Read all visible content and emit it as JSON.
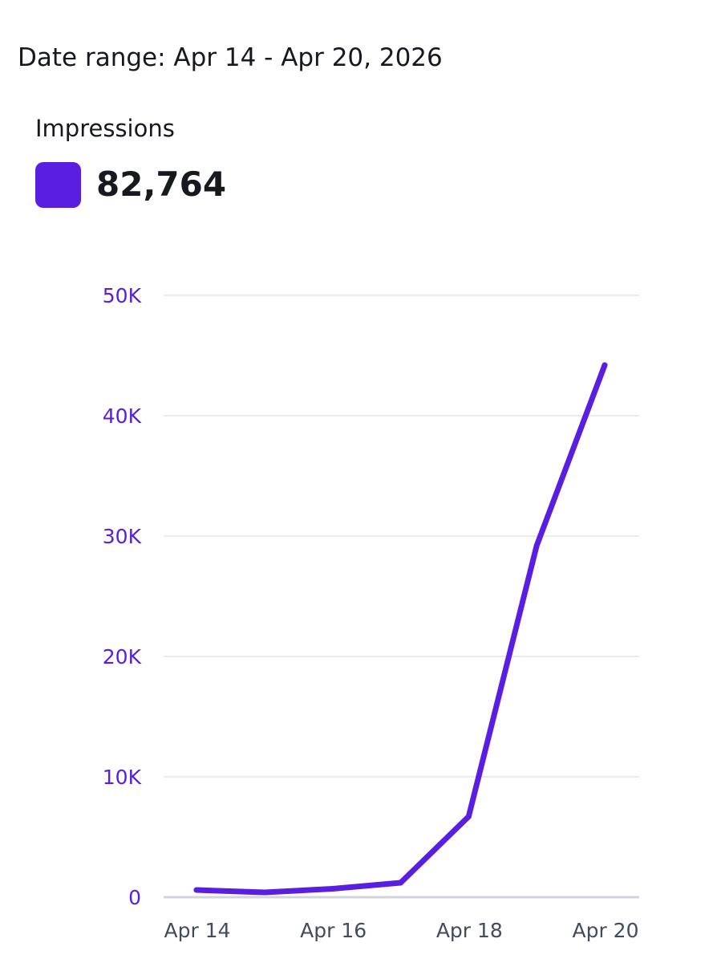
{
  "header": {
    "date_range": "Date range: Apr 14 - Apr 20, 2026"
  },
  "metric": {
    "label": "Impressions",
    "total": "82,764",
    "color": "#5a1ee0"
  },
  "colors": {
    "series": "#5a1ee0",
    "y_tick_text": "#5a1ee0",
    "x_tick_text": "#414d5c",
    "grid": "#e9ebed",
    "baseline": "#d1d5db"
  },
  "chart_data": {
    "type": "line",
    "x": [
      "Apr 14",
      "Apr 15",
      "Apr 16",
      "Apr 17",
      "Apr 18",
      "Apr 19",
      "Apr 20"
    ],
    "series": [
      {
        "name": "Impressions",
        "values": [
          600,
          400,
          700,
          1200,
          6700,
          29200,
          44200
        ]
      }
    ],
    "x_tick_labels": [
      "Apr 14",
      "",
      "Apr 16",
      "",
      "Apr 18",
      "",
      "Apr 20"
    ],
    "y_ticks": [
      0,
      10000,
      20000,
      30000,
      40000,
      50000
    ],
    "y_tick_labels": [
      "0",
      "10K",
      "20K",
      "30K",
      "40K",
      "50K"
    ],
    "ylim": [
      0,
      50000
    ],
    "grid": true,
    "legend": "none"
  }
}
